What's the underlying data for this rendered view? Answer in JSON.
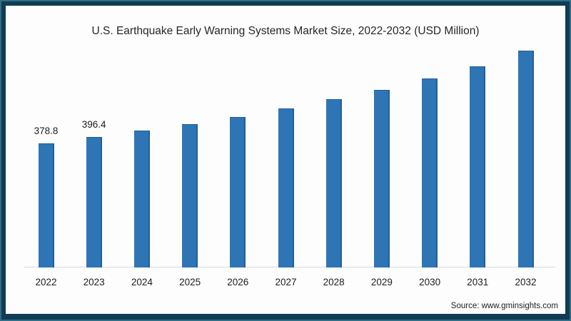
{
  "chart_data": {
    "type": "bar",
    "title": "U.S. Earthquake Early Warning Systems Market Size, 2022-2032 (USD Million)",
    "categories": [
      "2022",
      "2023",
      "2024",
      "2025",
      "2026",
      "2027",
      "2028",
      "2029",
      "2030",
      "2031",
      "2032"
    ],
    "values": [
      378.8,
      396.4,
      417.6,
      436.5,
      457.5,
      484.9,
      511.8,
      541.4,
      575.4,
      613.0,
      660.1
    ],
    "data_labels": {
      "2022": "378.8",
      "2023": "396.4"
    },
    "xlabel": "",
    "ylabel": "",
    "ylim": [
      0,
      700
    ],
    "grid": false,
    "legend": false,
    "bar_color": "#2E75B6",
    "bar_edge_color": "#245F97",
    "axis_line_color": "#D9D9D9"
  },
  "source_note": "Source: www.gminsights.com",
  "colors": {
    "frame_dark": "#113C54",
    "frame_light": "#2E6E86",
    "background": "#FDFDFD",
    "text": "#262626"
  }
}
